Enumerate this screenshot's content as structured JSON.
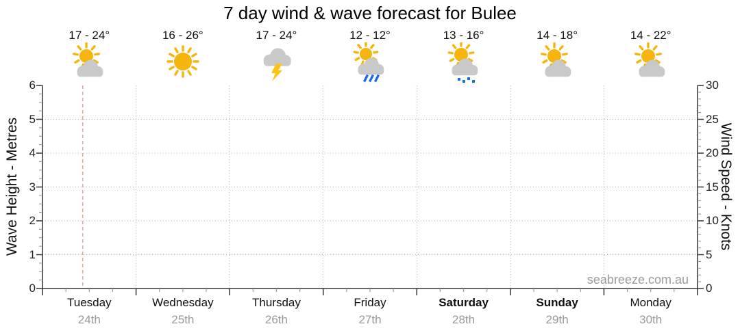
{
  "chart_data": {
    "type": "table",
    "title": "7 day wind & wave forecast for Bulee",
    "days": [
      {
        "name": "Tuesday",
        "date": "24th",
        "temperature": "17 - 24°",
        "icon": "sun-cloud",
        "weekend": false
      },
      {
        "name": "Wednesday",
        "date": "25th",
        "temperature": "16 - 26°",
        "icon": "sunny",
        "weekend": false
      },
      {
        "name": "Thursday",
        "date": "26th",
        "temperature": "17 - 24°",
        "icon": "storm",
        "weekend": false
      },
      {
        "name": "Friday",
        "date": "27th",
        "temperature": "12 - 12°",
        "icon": "rain",
        "weekend": false
      },
      {
        "name": "Saturday",
        "date": "28th",
        "temperature": "13 - 16°",
        "icon": "drizzle",
        "weekend": true
      },
      {
        "name": "Sunday",
        "date": "29th",
        "temperature": "14 - 18°",
        "icon": "sun-cloud",
        "weekend": true
      },
      {
        "name": "Monday",
        "date": "30th",
        "temperature": "14 - 22°",
        "icon": "sun-cloud",
        "weekend": false
      }
    ],
    "left_axis": {
      "label": "Wave Height - Metres",
      "min": 0,
      "max": 6,
      "major_step": 1,
      "minor_step": 0.25,
      "ticks": [
        0,
        1,
        2,
        3,
        4,
        5,
        6
      ]
    },
    "right_axis": {
      "label": "Wind Speed - Knots",
      "min": 0,
      "max": 30,
      "major_step": 5,
      "minor_step": 1,
      "ticks": [
        0,
        5,
        10,
        15,
        20,
        25,
        30
      ]
    },
    "series": [],
    "grid": true,
    "legend": false,
    "current_time_marker": {
      "day_index": 0,
      "fraction_of_day": 0.43
    }
  },
  "watermark": "seabreeze.com.au",
  "colors": {
    "sun": "#f6b40e",
    "cloud": "#c9c9c9",
    "lightning": "#fdc30f",
    "rain_blue": "#1b6be6",
    "marker_red": "#f49c9c",
    "grid_gray": "#ababab",
    "axis_dark": "#333333",
    "minor_tick_gray": "#888888",
    "date_gray": "#999999"
  }
}
